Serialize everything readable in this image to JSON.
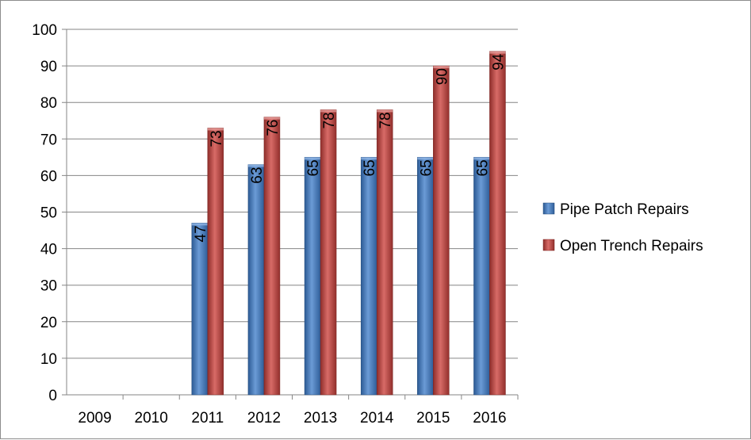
{
  "chart_data": {
    "type": "bar",
    "title": "",
    "xlabel": "",
    "ylabel": "",
    "categories": [
      "2009",
      "2010",
      "2011",
      "2012",
      "2013",
      "2014",
      "2015",
      "2016"
    ],
    "series": [
      {
        "name": "Pipe Patch Repairs",
        "values": [
          null,
          null,
          47,
          63,
          65,
          65,
          65,
          65
        ],
        "color": "#4a7ebb"
      },
      {
        "name": "Open Trench Repairs",
        "values": [
          null,
          null,
          73,
          76,
          78,
          78,
          90,
          94
        ],
        "color": "#be4b48"
      }
    ],
    "ylim": [
      0,
      100
    ],
    "yticks": [
      "0",
      "10",
      "20",
      "30",
      "40",
      "50",
      "60",
      "70",
      "80",
      "90",
      "100"
    ],
    "grid": true,
    "legend_position": "right",
    "data_labels": "rotated-inside-top"
  }
}
